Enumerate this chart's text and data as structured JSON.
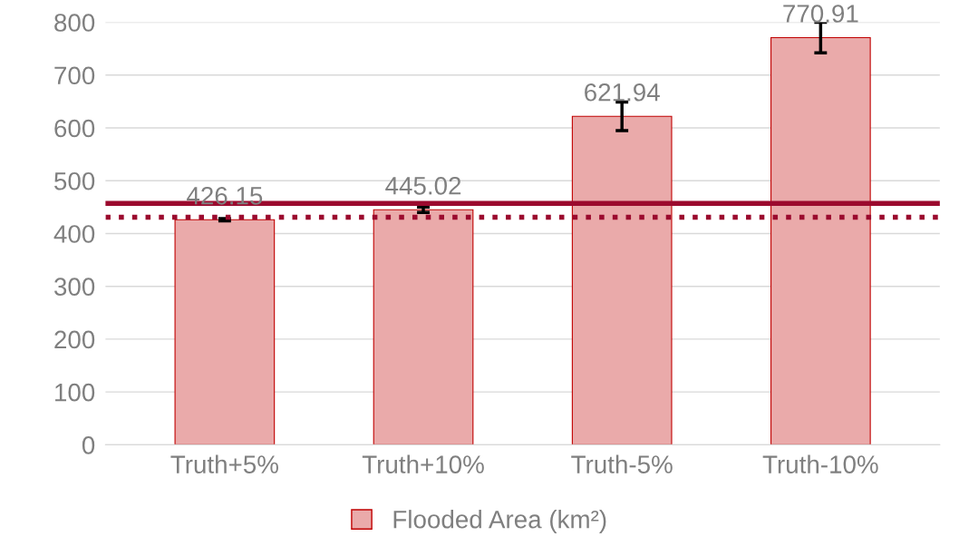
{
  "chart_data": {
    "type": "bar",
    "categories": [
      "Truth+5%",
      "Truth+10%",
      "Truth-5%",
      "Truth-10%"
    ],
    "series": [
      {
        "name": "Flooded Area (km²)",
        "color": "#eaaaaa",
        "values": [
          426.15,
          445.02,
          621.94,
          770.91
        ],
        "errors": [
          2,
          5,
          27,
          29
        ]
      }
    ],
    "data_labels": true,
    "ylim": [
      0,
      800
    ],
    "yticks": [
      0,
      100,
      200,
      300,
      400,
      500,
      600,
      700,
      800
    ],
    "grid": "y",
    "legend": "bottom",
    "ref_lines": [
      {
        "axis": "y",
        "value": 457,
        "color": "#9b0a2e",
        "line_style": "solid"
      },
      {
        "axis": "y",
        "value": 431,
        "color": "#9b0a2e",
        "line_style": "dotted"
      }
    ]
  }
}
